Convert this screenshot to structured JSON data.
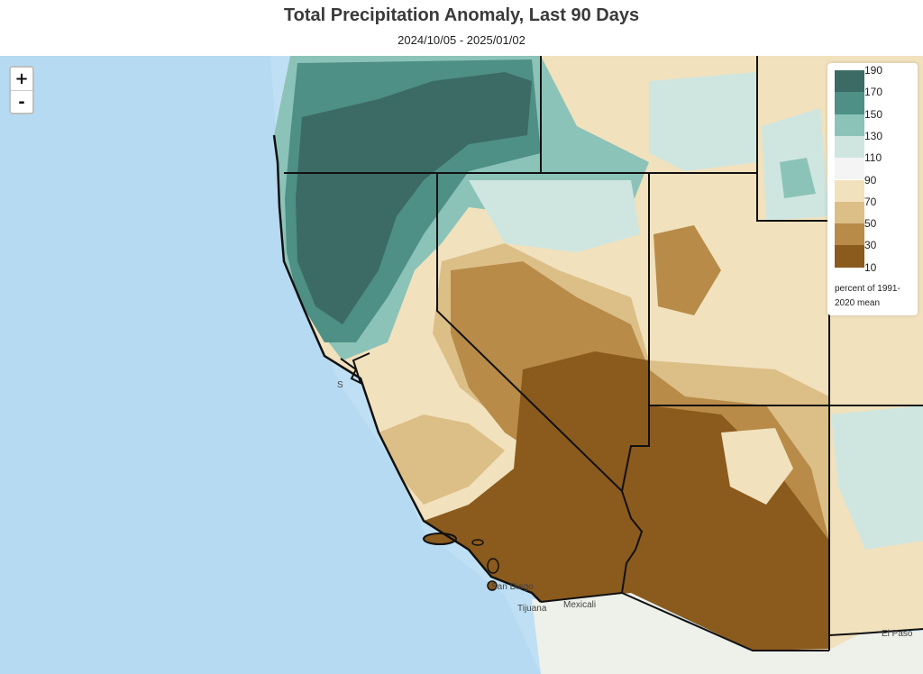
{
  "header": {
    "title": "Total Precipitation Anomaly, Last 90 Days",
    "subtitle": "2024/10/05 - 2025/01/02"
  },
  "zoom": {
    "in_label": "+",
    "out_label": "-"
  },
  "legend": {
    "ticks": [
      "190",
      "170",
      "150",
      "130",
      "110",
      "90",
      "70",
      "50",
      "30",
      "10"
    ],
    "colors": [
      "#3b6b64",
      "#4e8f86",
      "#8cc3b8",
      "#cfe6e0",
      "#f4f4f4",
      "#f1e1bd",
      "#dcbe87",
      "#b88b48",
      "#8b5a1d"
    ],
    "note_line1": "percent of 1991-",
    "note_line2": "2020 mean"
  },
  "map_labels": {
    "sf": "S",
    "san_diego": "San Diego",
    "tijuana": "Tijuana",
    "mexicali": "Mexicali",
    "el_paso": "El Paso"
  },
  "colors": {
    "ocean": "#bfe0f4",
    "ocean_deep": "#a9d2ee",
    "land_base": "#f1e1bd",
    "very_dry": "#8b5a1d",
    "dry": "#b88b48",
    "wet": "#4e8f86",
    "very_wet": "#3b6b64"
  }
}
